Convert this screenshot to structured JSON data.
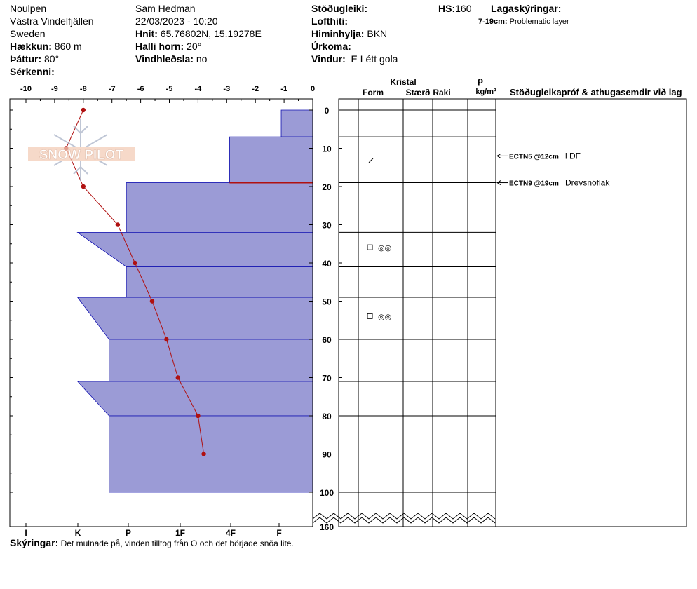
{
  "header": {
    "location": "Noulpen",
    "region": "Västra Vindelfjällen",
    "country": "Sweden",
    "elevation_label": "Hækkun:",
    "elevation": "860 m",
    "aspect_label": "Þáttur:",
    "aspect": "80°",
    "features_label": "Sérkenni:",
    "observer": "Sam Hedman",
    "datetime": "22/03/2023 - 10:20",
    "coords_label": "Hnit:",
    "coords": "65.76802N, 15.19278E",
    "slope_label": "Halli horn:",
    "slope": "20°",
    "windload_label": "Vindhleðsla:",
    "windload": "no",
    "stability_label": "Stöðugleiki:",
    "airtemp_label": "Lofthiti:",
    "sky_label": "Himinhylja:",
    "sky": "BKN",
    "precip_label": "Úrkoma:",
    "wind_label": "Vindur:",
    "wind": "E Létt gola",
    "hs_label": "HS:",
    "hs": "160",
    "layer_notes_label": "Lagaskýringar:",
    "layer_note_range": "7-19cm:",
    "layer_note_text": "Problematic layer"
  },
  "columns": {
    "crystal": "Kristal",
    "form": "Form",
    "size": "Stærð",
    "moisture": "Raki",
    "rho": "ρ",
    "density_unit": "kg/m³",
    "tests_header": "Stöðugleikapróf & athugasemdir við lag"
  },
  "logo_text": "SNOW PILOT",
  "footer": {
    "label": "Skýringar:",
    "text": "Det mulnade på, vinden tilltog från O och det började snöa lite."
  },
  "colors": {
    "hardness_fill": "#9b9bd6",
    "hardness_edge": "#1010b0",
    "temp_line": "#b01010",
    "weak_layer": "#b01010"
  },
  "chart_data": {
    "type": "snow-profile",
    "temp_axis": {
      "ticks": [
        "-10",
        "-9",
        "-8",
        "-7",
        "-6",
        "-5",
        "-4",
        "-3",
        "-2",
        "-1",
        "0"
      ],
      "range": [
        -10.5,
        0
      ]
    },
    "hardness_axis": {
      "ticks": [
        "I",
        "K",
        "P",
        "1F",
        "4F",
        "F"
      ]
    },
    "depth_ticks": [
      "0",
      "10",
      "20",
      "30",
      "40",
      "50",
      "60",
      "70",
      "80",
      "90",
      "100",
      "160"
    ],
    "temperature_profile": [
      {
        "depth": 0,
        "temp": -8.0
      },
      {
        "depth": 10,
        "temp": -8.6
      },
      {
        "depth": 20,
        "temp": -8.0
      },
      {
        "depth": 30,
        "temp": -6.8
      },
      {
        "depth": 40,
        "temp": -6.2
      },
      {
        "depth": 50,
        "temp": -5.6
      },
      {
        "depth": 60,
        "temp": -5.1
      },
      {
        "depth": 70,
        "temp": -4.7
      },
      {
        "depth": 80,
        "temp": -4.0
      },
      {
        "depth": 90,
        "temp": -3.8
      }
    ],
    "layers": [
      {
        "top": 0,
        "bottom": 7,
        "hardness_top": -1.1,
        "hardness_bottom": -1.1
      },
      {
        "top": 7,
        "bottom": 19,
        "hardness_top": -2.9,
        "hardness_bottom": -2.9
      },
      {
        "top": 19,
        "bottom": 32,
        "hardness_top": -6.5,
        "hardness_bottom": -6.5
      },
      {
        "top": 32,
        "bottom": 41,
        "hardness_top": -8.2,
        "hardness_bottom": -6.5
      },
      {
        "top": 41,
        "bottom": 49,
        "hardness_top": -6.5,
        "hardness_bottom": -6.5
      },
      {
        "top": 49,
        "bottom": 60,
        "hardness_top": -8.2,
        "hardness_bottom": -7.1
      },
      {
        "top": 60,
        "bottom": 71,
        "hardness_top": -7.1,
        "hardness_bottom": -7.1
      },
      {
        "top": 71,
        "bottom": 80,
        "hardness_top": -8.2,
        "hardness_bottom": -7.1
      },
      {
        "top": 80,
        "bottom": 100,
        "hardness_top": -7.1,
        "hardness_bottom": -7.1
      }
    ],
    "weak_layer_depth": 19,
    "crystal_marks": [
      {
        "depth": 13,
        "form": "slash"
      },
      {
        "depth": 36,
        "form": "square",
        "extra": "◎◎"
      },
      {
        "depth": 54,
        "form": "square",
        "extra": "◎◎"
      }
    ],
    "tests": [
      {
        "depth": 12,
        "code": "ECTN5 @12cm",
        "comment": "i DF"
      },
      {
        "depth": 19,
        "code": "ECTN9 @19cm",
        "comment": "Drevsnöflak"
      }
    ]
  }
}
